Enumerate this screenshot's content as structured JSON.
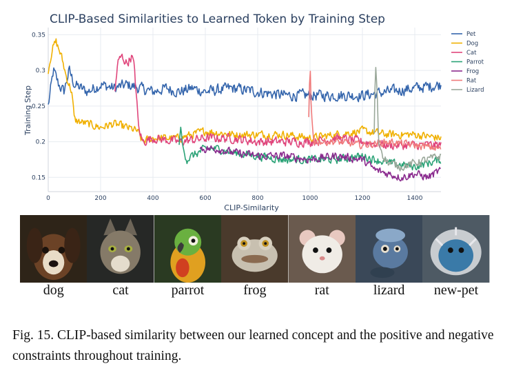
{
  "chart_data": {
    "type": "line",
    "title": "CLIP-Based Similarities to Learned Token by Training Step",
    "xlabel": "CLIP-Similarity",
    "ylabel": "Training Step",
    "xlim": [
      0,
      1500
    ],
    "ylim": [
      0.13,
      0.36
    ],
    "x_ticks": [
      0,
      200,
      400,
      600,
      800,
      1000,
      1200,
      1400
    ],
    "y_ticks": [
      0.15,
      0.2,
      0.25,
      0.3,
      0.35
    ],
    "y_tick_labels": [
      "0.15",
      "0.2",
      "0.25",
      "0.3",
      "0.35"
    ],
    "grid": true,
    "legend_position": "top-right",
    "series": [
      {
        "name": "Pet",
        "color": "#3465ac",
        "x_start": 0,
        "x_end": 1500,
        "points": [
          [
            0,
            0.25
          ],
          [
            20,
            0.3
          ],
          [
            40,
            0.28
          ],
          [
            60,
            0.27
          ],
          [
            80,
            0.3
          ],
          [
            100,
            0.28
          ],
          [
            150,
            0.27
          ],
          [
            200,
            0.28
          ],
          [
            250,
            0.275
          ],
          [
            300,
            0.28
          ],
          [
            350,
            0.275
          ],
          [
            400,
            0.27
          ],
          [
            450,
            0.275
          ],
          [
            500,
            0.27
          ],
          [
            550,
            0.275
          ],
          [
            600,
            0.27
          ],
          [
            700,
            0.275
          ],
          [
            800,
            0.27
          ],
          [
            900,
            0.265
          ],
          [
            1000,
            0.265
          ],
          [
            1100,
            0.265
          ],
          [
            1200,
            0.265
          ],
          [
            1300,
            0.27
          ],
          [
            1400,
            0.275
          ],
          [
            1500,
            0.28
          ]
        ]
      },
      {
        "name": "Dog",
        "color": "#f0b000",
        "x_start": 0,
        "x_end": 1500,
        "points": [
          [
            0,
            0.3
          ],
          [
            15,
            0.33
          ],
          [
            30,
            0.34
          ],
          [
            50,
            0.32
          ],
          [
            70,
            0.29
          ],
          [
            90,
            0.27
          ],
          [
            100,
            0.23
          ],
          [
            150,
            0.225
          ],
          [
            200,
            0.22
          ],
          [
            250,
            0.225
          ],
          [
            300,
            0.22
          ],
          [
            340,
            0.215
          ],
          [
            360,
            0.2
          ],
          [
            400,
            0.205
          ],
          [
            500,
            0.205
          ],
          [
            600,
            0.215
          ],
          [
            700,
            0.21
          ],
          [
            800,
            0.21
          ],
          [
            900,
            0.21
          ],
          [
            1000,
            0.205
          ],
          [
            1100,
            0.21
          ],
          [
            1200,
            0.215
          ],
          [
            1300,
            0.21
          ],
          [
            1400,
            0.21
          ],
          [
            1500,
            0.205
          ]
        ]
      },
      {
        "name": "Cat",
        "color": "#e0457b",
        "x_start": 255,
        "x_end": 1500,
        "points": [
          [
            255,
            0.27
          ],
          [
            265,
            0.31
          ],
          [
            280,
            0.32
          ],
          [
            300,
            0.31
          ],
          [
            320,
            0.32
          ],
          [
            330,
            0.3
          ],
          [
            345,
            0.22
          ],
          [
            360,
            0.2
          ],
          [
            400,
            0.205
          ],
          [
            500,
            0.2
          ],
          [
            600,
            0.205
          ],
          [
            700,
            0.205
          ],
          [
            800,
            0.2
          ],
          [
            900,
            0.2
          ],
          [
            1000,
            0.2
          ],
          [
            1100,
            0.205
          ],
          [
            1200,
            0.2
          ],
          [
            1300,
            0.195
          ],
          [
            1400,
            0.195
          ],
          [
            1500,
            0.195
          ]
        ]
      },
      {
        "name": "Parrot",
        "color": "#2aa276",
        "x_start": 500,
        "x_end": 1500,
        "points": [
          [
            500,
            0.2
          ],
          [
            505,
            0.22
          ],
          [
            515,
            0.19
          ],
          [
            530,
            0.175
          ],
          [
            550,
            0.18
          ],
          [
            600,
            0.19
          ],
          [
            650,
            0.19
          ],
          [
            700,
            0.185
          ],
          [
            800,
            0.18
          ],
          [
            900,
            0.175
          ],
          [
            1000,
            0.175
          ],
          [
            1100,
            0.175
          ],
          [
            1200,
            0.18
          ],
          [
            1300,
            0.17
          ],
          [
            1400,
            0.165
          ],
          [
            1500,
            0.175
          ]
        ]
      },
      {
        "name": "Frog",
        "color": "#8a2a8e",
        "x_start": 580,
        "x_end": 1500,
        "points": [
          [
            580,
            0.19
          ],
          [
            650,
            0.19
          ],
          [
            700,
            0.185
          ],
          [
            800,
            0.18
          ],
          [
            900,
            0.18
          ],
          [
            1000,
            0.175
          ],
          [
            1100,
            0.18
          ],
          [
            1200,
            0.175
          ],
          [
            1250,
            0.16
          ],
          [
            1300,
            0.155
          ],
          [
            1350,
            0.15
          ],
          [
            1400,
            0.155
          ],
          [
            1450,
            0.15
          ],
          [
            1500,
            0.16
          ]
        ]
      },
      {
        "name": "Rat",
        "color": "#f07a7a",
        "x_start": 995,
        "x_end": 1500,
        "points": [
          [
            995,
            0.23
          ],
          [
            1000,
            0.31
          ],
          [
            1005,
            0.24
          ],
          [
            1015,
            0.2
          ],
          [
            1050,
            0.2
          ],
          [
            1100,
            0.2
          ],
          [
            1200,
            0.195
          ],
          [
            1300,
            0.2
          ],
          [
            1400,
            0.195
          ],
          [
            1500,
            0.19
          ]
        ]
      },
      {
        "name": "Lizard",
        "color": "#9aa89a",
        "x_start": 1245,
        "x_end": 1500,
        "points": [
          [
            1245,
            0.21
          ],
          [
            1250,
            0.31
          ],
          [
            1255,
            0.28
          ],
          [
            1262,
            0.2
          ],
          [
            1280,
            0.18
          ],
          [
            1300,
            0.17
          ],
          [
            1350,
            0.165
          ],
          [
            1400,
            0.17
          ],
          [
            1450,
            0.175
          ],
          [
            1500,
            0.18
          ]
        ]
      }
    ]
  },
  "legend": [
    "Pet",
    "Dog",
    "Cat",
    "Parrot",
    "Frog",
    "Rat",
    "Lizard"
  ],
  "images": [
    {
      "name": "dog",
      "icon": "dog-photo",
      "bg": "#3a2a1e"
    },
    {
      "name": "cat",
      "icon": "cat-photo",
      "bg": "#2b2d2a"
    },
    {
      "name": "parrot",
      "icon": "parrot-photo",
      "bg": "#2c3a24"
    },
    {
      "name": "frog",
      "icon": "frog-photo",
      "bg": "#4a3c30"
    },
    {
      "name": "rat",
      "icon": "rat-photo",
      "bg": "#6a5a50"
    },
    {
      "name": "lizard",
      "icon": "lizard-photo",
      "bg": "#3a4a5a"
    },
    {
      "name": "new-pet",
      "icon": "new-pet-photo",
      "bg": "#54606a"
    }
  ],
  "caption": "Fig. 15.  CLIP-based similarity between our learned concept and the positive and negative constraints throughout training."
}
